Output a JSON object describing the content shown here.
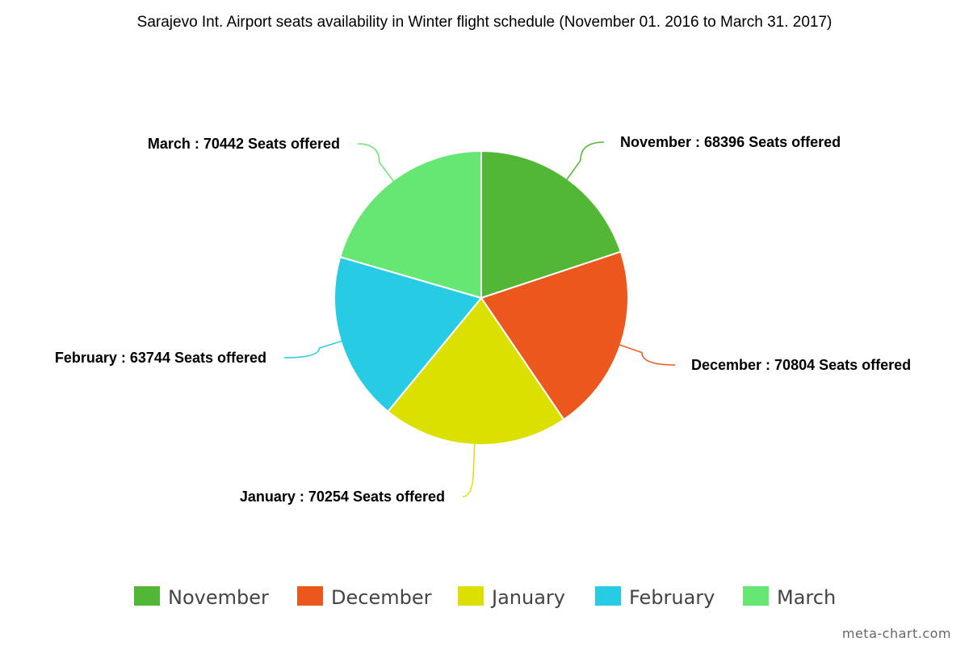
{
  "chart_data": {
    "type": "pie",
    "title": "Sarajevo Int. Airport seats availability in Winter flight schedule (November 01. 2016 to March 31. 2017)",
    "categories": [
      "November",
      "December",
      "January",
      "February",
      "March"
    ],
    "values": [
      68396,
      70804,
      70254,
      63744,
      70442
    ],
    "labels": [
      "November : 68396 Seats offered",
      "December : 70804 Seats offered",
      "January : 70254 Seats offered",
      "February : 63744 Seats offered",
      "March : 70442 Seats offered"
    ],
    "colors": [
      "#52b734",
      "#ec571d",
      "#dce000",
      "#27cce4",
      "#66e673"
    ],
    "legend_position": "bottom"
  },
  "credit": "meta-chart.com"
}
